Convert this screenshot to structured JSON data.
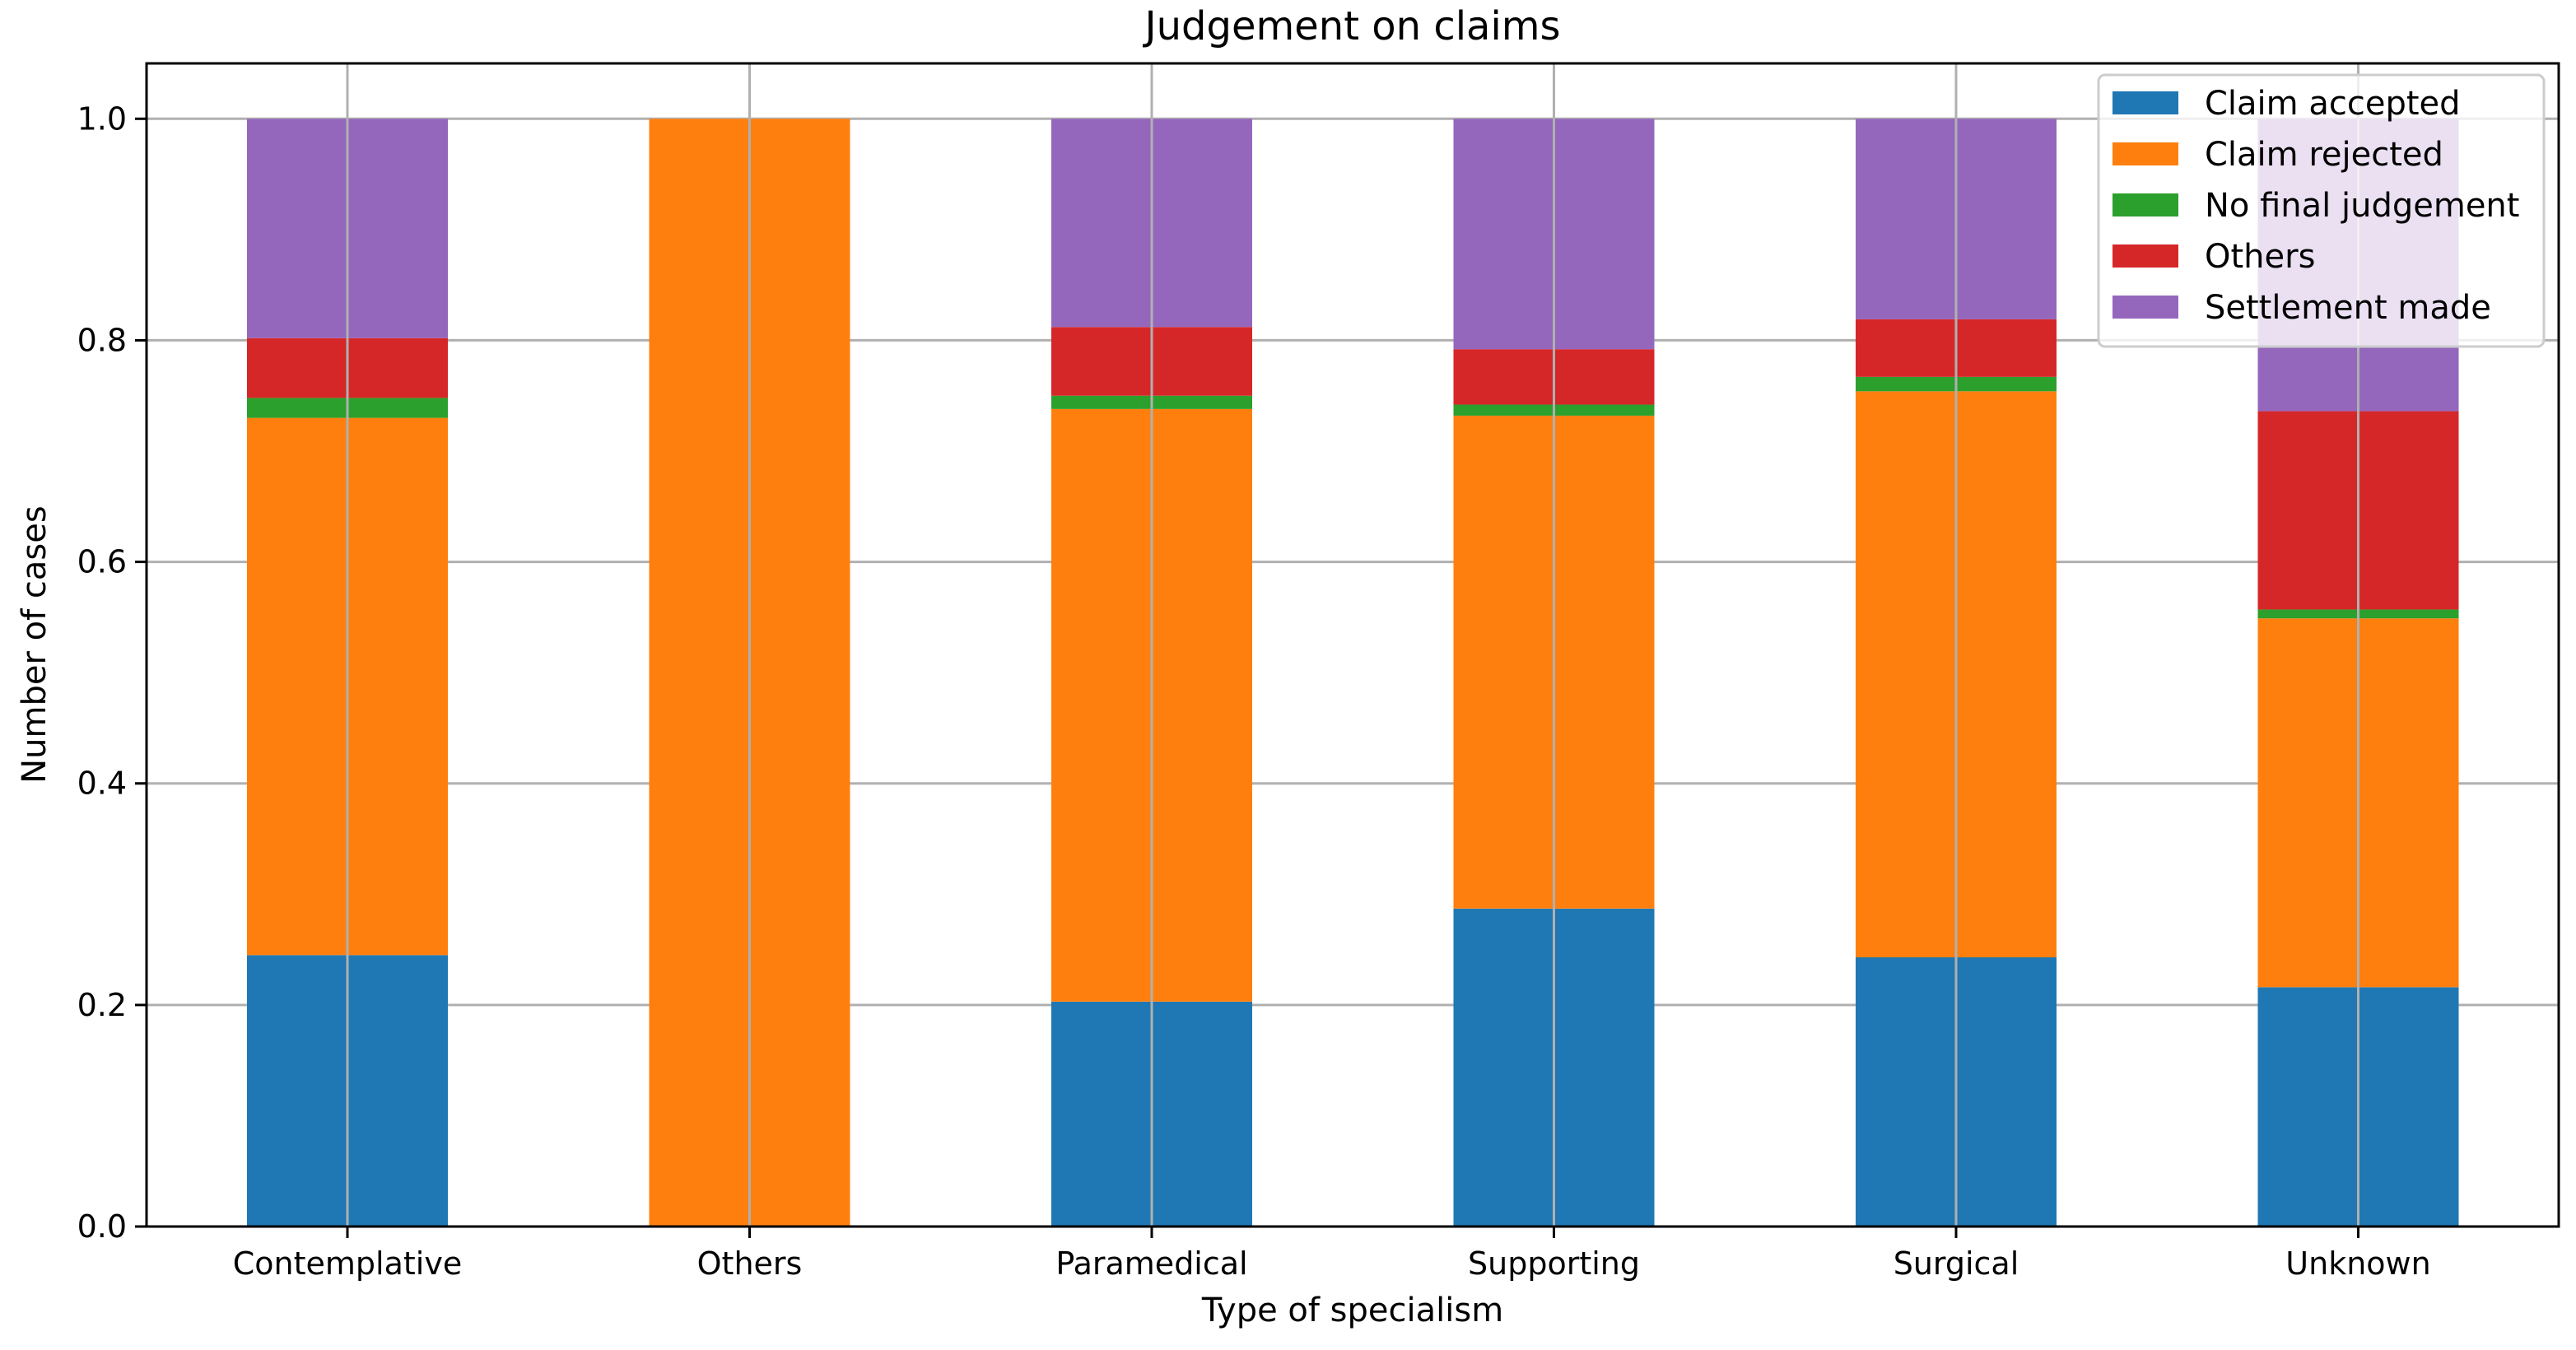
{
  "chart_data": {
    "type": "bar",
    "stacked": true,
    "title": "Judgement on claims",
    "xlabel": "Type of specialism",
    "ylabel": "Number of cases",
    "ylim": [
      0,
      1.05
    ],
    "yticks": [
      0.0,
      0.2,
      0.4,
      0.6,
      0.8,
      1.0
    ],
    "ytick_labels": [
      "0.0",
      "0.2",
      "0.4",
      "0.6",
      "0.8",
      "1.0"
    ],
    "grid": true,
    "legend_position": "top-right",
    "categories": [
      "Contemplative",
      "Others",
      "Paramedical",
      "Supporting",
      "Surgical",
      "Unknown"
    ],
    "series": [
      {
        "name": "Claim accepted",
        "color": "#1f77b4",
        "values": [
          0.245,
          0.0,
          0.203,
          0.287,
          0.243,
          0.216
        ]
      },
      {
        "name": "Claim rejected",
        "color": "#ff7f0e",
        "values": [
          0.485,
          1.0,
          0.535,
          0.445,
          0.511,
          0.333
        ]
      },
      {
        "name": "No final judgement",
        "color": "#2ca02c",
        "values": [
          0.018,
          0.0,
          0.012,
          0.01,
          0.013,
          0.008
        ]
      },
      {
        "name": "Others",
        "color": "#d62728",
        "values": [
          0.054,
          0.0,
          0.062,
          0.05,
          0.052,
          0.179
        ]
      },
      {
        "name": "Settlement made",
        "color": "#9467bd",
        "values": [
          0.198,
          0.0,
          0.188,
          0.208,
          0.181,
          0.264
        ]
      }
    ]
  }
}
